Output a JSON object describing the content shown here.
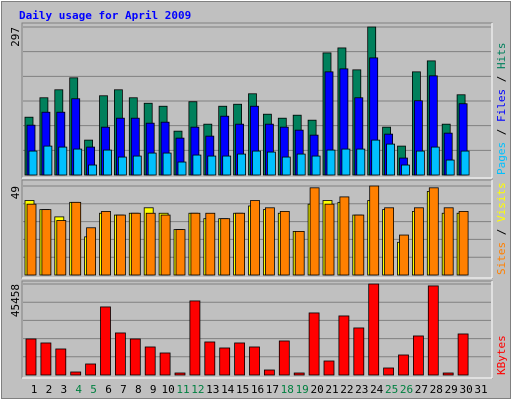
{
  "title": "Daily usage for April 2009",
  "legend_separator": " / ",
  "chart_data": [
    {
      "type": "bar",
      "ylim": [
        0,
        297
      ],
      "yticks": [
        297
      ],
      "grid": true,
      "series": [
        {
          "name": "Hits",
          "color": "#00805c",
          "values": [
            116,
            155,
            171,
            195,
            70,
            159,
            171,
            155,
            144,
            138,
            88,
            147,
            102,
            138,
            142,
            163,
            122,
            114,
            120,
            110,
            245,
            255,
            211,
            297,
            96,
            58,
            207,
            229,
            102,
            161,
            null
          ]
        },
        {
          "name": "Files",
          "color": "#0000ff",
          "values": [
            100,
            126,
            126,
            153,
            56,
            96,
            114,
            114,
            104,
            106,
            74,
            96,
            78,
            118,
            102,
            138,
            102,
            96,
            90,
            80,
            207,
            213,
            155,
            235,
            82,
            34,
            149,
            199,
            84,
            143,
            null
          ]
        },
        {
          "name": "Pages",
          "color": "#00c0ff",
          "values": [
            48,
            58,
            56,
            52,
            20,
            50,
            36,
            38,
            44,
            44,
            26,
            40,
            38,
            38,
            42,
            48,
            46,
            36,
            42,
            38,
            50,
            52,
            52,
            70,
            62,
            20,
            48,
            56,
            30,
            48,
            null
          ]
        }
      ]
    },
    {
      "type": "bar",
      "ylim": [
        0,
        49
      ],
      "yticks": [
        49
      ],
      "grid": true,
      "series": [
        {
          "name": "Visits",
          "color": "#ffff00",
          "values": [
            41,
            36,
            32,
            40,
            21,
            34,
            33,
            34,
            37,
            34,
            25,
            34,
            31,
            31,
            34,
            38,
            36,
            34,
            24,
            39,
            41,
            40,
            33,
            41,
            36,
            18,
            35,
            46,
            34,
            34,
            null
          ]
        },
        {
          "name": "Sites",
          "color": "#ff8000",
          "values": [
            39,
            36,
            30,
            40,
            26,
            35,
            33,
            34,
            34,
            33,
            25,
            34,
            34,
            31,
            34,
            41,
            37,
            35,
            24,
            48,
            39,
            43,
            33,
            49,
            37,
            22,
            37,
            48,
            37,
            35,
            null
          ]
        }
      ]
    },
    {
      "type": "bar",
      "ylim": [
        0,
        45458
      ],
      "yticks": [
        45458
      ],
      "grid": true,
      "categories": [
        "1",
        "2",
        "3",
        "4",
        "5",
        "6",
        "7",
        "8",
        "9",
        "10",
        "11",
        "12",
        "13",
        "14",
        "15",
        "16",
        "17",
        "18",
        "19",
        "20",
        "21",
        "22",
        "23",
        "24",
        "25",
        "26",
        "27",
        "28",
        "29",
        "30",
        "31"
      ],
      "category_colors": [
        "#000000",
        "#000000",
        "#000000",
        "#008040",
        "#008040",
        "#000000",
        "#000000",
        "#000000",
        "#000000",
        "#000000",
        "#008040",
        "#008040",
        "#000000",
        "#000000",
        "#000000",
        "#000000",
        "#000000",
        "#008040",
        "#008040",
        "#000000",
        "#000000",
        "#000000",
        "#000000",
        "#000000",
        "#008040",
        "#008040",
        "#000000",
        "#000000",
        "#000000",
        "#000000",
        "#000000"
      ],
      "series": [
        {
          "name": "KBytes",
          "color": "#ff0000",
          "values": [
            18000,
            16000,
            13000,
            1500,
            5500,
            34000,
            21000,
            18000,
            14000,
            11000,
            1000,
            37000,
            16500,
            13500,
            16000,
            14000,
            2500,
            17000,
            1000,
            31000,
            7000,
            29500,
            23500,
            45458,
            3500,
            10000,
            19500,
            44500,
            1000,
            20500,
            null
          ]
        }
      ]
    }
  ]
}
